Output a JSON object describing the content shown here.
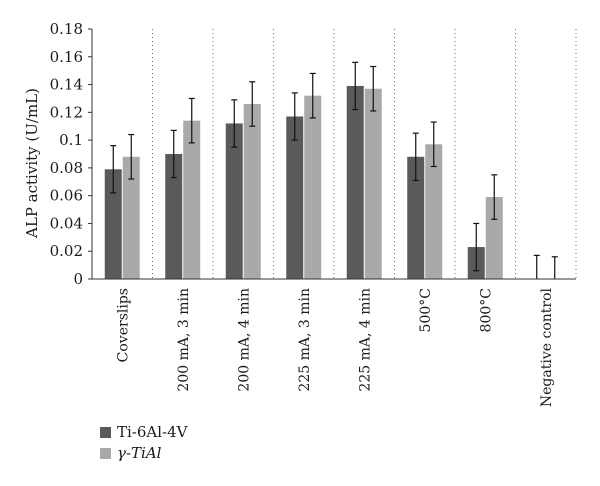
{
  "chart_data": {
    "type": "bar",
    "title": "",
    "xlabel": "",
    "ylabel": "ALP activity (U/mL)",
    "ylim": [
      0,
      0.18
    ],
    "yticks": [
      "0",
      "0.02",
      "0.04",
      "0.06",
      "0.08",
      "0.1",
      "0.12",
      "0.14",
      "0.16",
      "0.18"
    ],
    "grid": "dotted vertical separators between categories",
    "legend_position": "bottom-left",
    "categories": [
      "Coverslips",
      "200 mA, 3 min",
      "200 mA, 4 min",
      "225 mA, 3 min",
      "225 mA, 4 min",
      "500°C",
      "800°C",
      "Negative control"
    ],
    "series": [
      {
        "name": "Ti-6Al-4V",
        "color": "#5a5a5a",
        "values": [
          0.079,
          0.09,
          0.112,
          0.117,
          0.139,
          0.088,
          0.023,
          0
        ],
        "errors": [
          0.017,
          0.017,
          0.017,
          0.017,
          0.017,
          0.017,
          0.017,
          0.017
        ]
      },
      {
        "name": "γ-TiAl",
        "color": "#a9a9a9",
        "values": [
          0.088,
          0.114,
          0.126,
          0.132,
          0.137,
          0.097,
          0.059,
          0
        ],
        "errors": [
          0.016,
          0.016,
          0.016,
          0.016,
          0.016,
          0.016,
          0.016,
          0.016
        ]
      }
    ]
  }
}
